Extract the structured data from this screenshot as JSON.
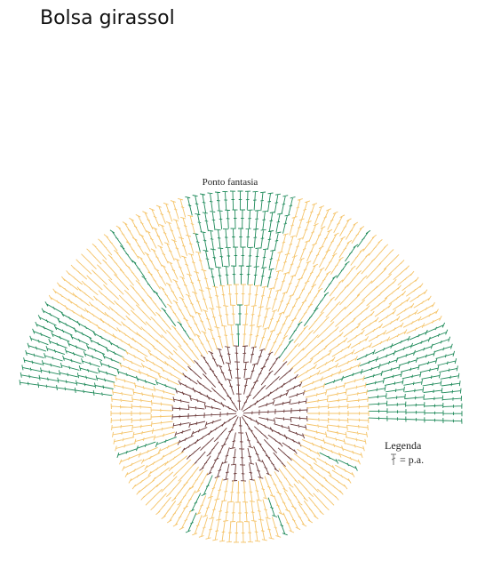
{
  "header": {
    "title": "Bolsa girassol"
  },
  "diagram": {
    "label": "Ponto fantasia"
  },
  "legend": {
    "title": "Legenda",
    "entry": "= p.a."
  }
}
